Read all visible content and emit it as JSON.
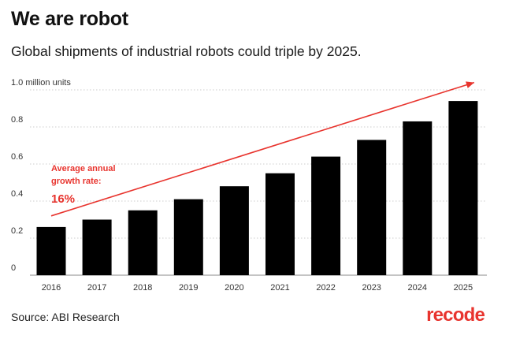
{
  "header": {
    "title": "We are robot",
    "subtitle": "Global shipments of industrial robots could triple by 2025."
  },
  "chart_data": {
    "type": "bar",
    "categories": [
      "2016",
      "2017",
      "2018",
      "2019",
      "2020",
      "2021",
      "2022",
      "2023",
      "2024",
      "2025"
    ],
    "values": [
      0.26,
      0.3,
      0.35,
      0.41,
      0.48,
      0.55,
      0.64,
      0.73,
      0.83,
      0.94
    ],
    "ylim": [
      0,
      1.0
    ],
    "yticks": [
      {
        "value": 0,
        "label": "0"
      },
      {
        "value": 0.2,
        "label": "0.2"
      },
      {
        "value": 0.4,
        "label": "0.4"
      },
      {
        "value": 0.6,
        "label": "0.6"
      },
      {
        "value": 0.8,
        "label": "0.8"
      },
      {
        "value": 1.0,
        "label": "1.0 million units"
      }
    ],
    "grid": true,
    "bar_color": "#000000",
    "annotation": {
      "lines": [
        "Average annual",
        "growth rate:"
      ],
      "value": "16%",
      "color": "#e8342e"
    },
    "trend_arrow": {
      "from": {
        "category": "2016",
        "value": 0.32
      },
      "to": {
        "category": "2025",
        "value": 1.04
      },
      "color": "#e8342e"
    }
  },
  "footer": {
    "source": "Source: ABI Research",
    "brand": "recode",
    "brand_color": "#e8342e"
  }
}
